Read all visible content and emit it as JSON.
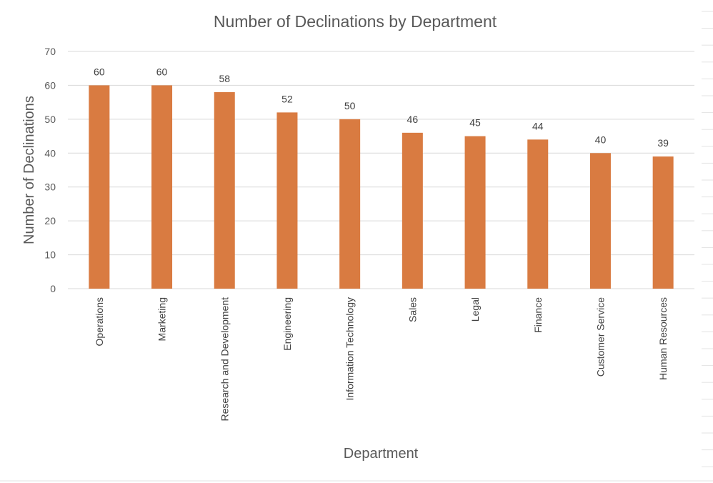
{
  "chart_data": {
    "type": "bar",
    "title": "Number of Declinations by Department",
    "xlabel": "Department",
    "ylabel": "Number of Declinations",
    "categories": [
      "Operations",
      "Marketing",
      "Research and Development",
      "Engineering",
      "Information Technology",
      "Sales",
      "Legal",
      "Finance",
      "Customer Service",
      "Human Resources"
    ],
    "values": [
      60,
      60,
      58,
      52,
      50,
      46,
      45,
      44,
      40,
      39
    ],
    "ylim": [
      0,
      70
    ],
    "yticks": [
      0,
      10,
      20,
      30,
      40,
      50,
      60,
      70
    ],
    "grid": true,
    "legend": "none",
    "data_labels": true,
    "bar_color": "#d97b41"
  }
}
